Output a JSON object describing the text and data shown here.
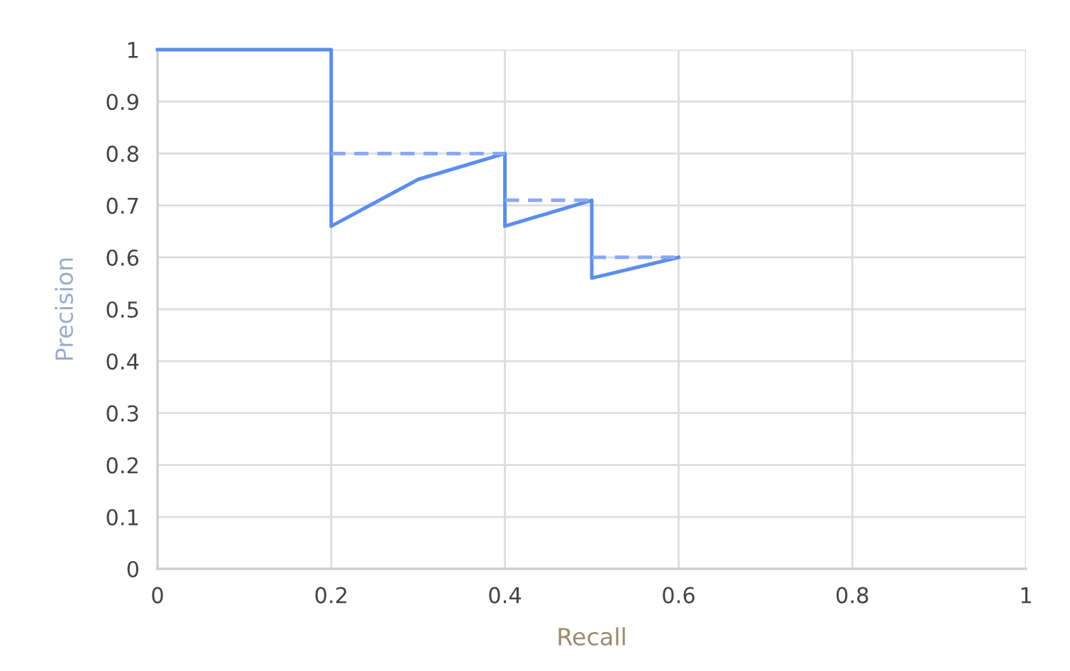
{
  "chart_data": {
    "type": "line",
    "xlabel": "Recall",
    "ylabel": "Precision",
    "xlim": [
      0,
      1
    ],
    "ylim": [
      0,
      1
    ],
    "xticks": [
      0,
      0.2,
      0.4,
      0.6,
      0.8,
      1
    ],
    "yticks": [
      0,
      0.1,
      0.2,
      0.3,
      0.4,
      0.5,
      0.6,
      0.7,
      0.8,
      0.9,
      1
    ],
    "grid": true,
    "series": [
      {
        "color": "#5b8def",
        "line_style": "solid",
        "x": [
          0,
          0.2,
          0.2,
          0.3,
          0.4,
          0.4,
          0.5,
          0.5,
          0.6
        ],
        "values": [
          1,
          1,
          0.66,
          0.75,
          0.8,
          0.66,
          0.71,
          0.56,
          0.6
        ]
      },
      {
        "color": "#8aa9f5",
        "line_style": "dashed",
        "x": [
          0.2,
          0.4
        ],
        "values": [
          0.8,
          0.8
        ]
      },
      {
        "color": "#8aa9f5",
        "line_style": "dashed",
        "x": [
          0.4,
          0.5
        ],
        "values": [
          0.71,
          0.71
        ]
      },
      {
        "color": "#8aa9f5",
        "line_style": "dashed",
        "x": [
          0.5,
          0.6
        ],
        "values": [
          0.6,
          0.6
        ]
      }
    ]
  }
}
